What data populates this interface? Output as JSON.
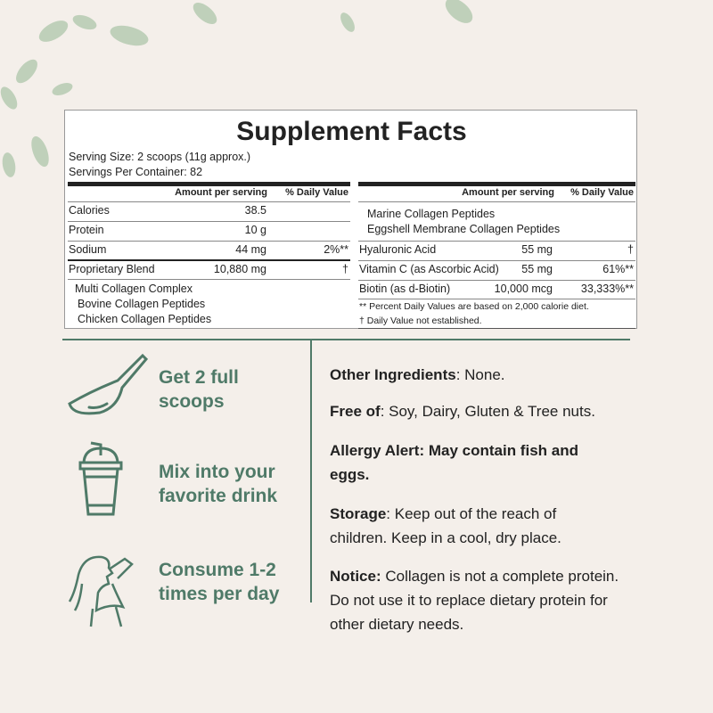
{
  "colors": {
    "background": "#f4efea",
    "accent": "#4f7a68"
  },
  "title": "Supplement Facts",
  "serving_size": "Serving Size: 2 scoops (11g approx.)",
  "servings_per_container": "Servings Per Container: 82",
  "headers": {
    "amount": "Amount per serving",
    "dv": "% Daily Value"
  },
  "left_rows": [
    {
      "name": "Calories",
      "amount": "38.5",
      "dv": ""
    },
    {
      "name": "Protein",
      "amount": "10 g",
      "dv": ""
    },
    {
      "name": "Sodium",
      "amount": "44 mg",
      "dv": "2%**"
    },
    {
      "name": "Proprietary Blend",
      "amount": "10,880 mg",
      "dv": "†"
    }
  ],
  "blend_items": [
    "Multi Collagen Complex",
    "Bovine Collagen Peptides",
    "Chicken Collagen Peptides",
    "Marine Collagen Peptides",
    "Eggshell Membrane Collagen Peptides"
  ],
  "right_rows": [
    {
      "name": "Hyaluronic Acid",
      "amount": "55 mg",
      "dv": "†"
    },
    {
      "name": "Vitamin C (as Ascorbic Acid)",
      "amount": "55 mg",
      "dv": "61%**"
    },
    {
      "name": "Biotin (as d-Biotin)",
      "amount": "10,000 mcg",
      "dv": "33,333%**"
    }
  ],
  "footnotes": [
    "** Percent Daily Values are based on 2,000 calorie diet.",
    "† Daily Value not established."
  ],
  "steps": [
    {
      "icon": "scoop-icon",
      "line1": "Get 2 full",
      "line2": "scoops"
    },
    {
      "icon": "cup-icon",
      "line1": "Mix into your",
      "line2": "favorite drink"
    },
    {
      "icon": "woman-drinking-icon",
      "line1": "Consume 1-2",
      "line2": "times per day"
    }
  ],
  "info": {
    "other_label": "Other Ingredients",
    "other_text": ": None.",
    "free_label": "Free of",
    "free_text": ": Soy, Dairy, Gluten & Tree nuts.",
    "allergy_line1": "Allergy Alert: May contain fish and",
    "allergy_line2": "eggs.",
    "storage_label": "Storage",
    "storage_text1": ": Keep out of the reach of",
    "storage_text2": "children. Keep in a cool, dry place.",
    "notice_label": "Notice:",
    "notice_text1": " Collagen is not a complete protein.",
    "notice_text2": "Do not use it to replace dietary protein for",
    "notice_text3": "other dietary needs."
  }
}
